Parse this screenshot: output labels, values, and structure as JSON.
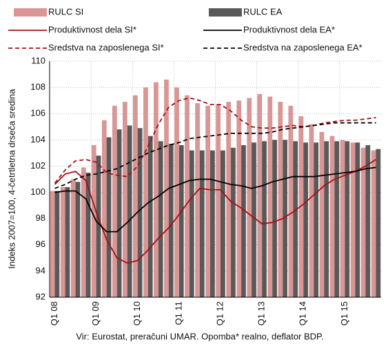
{
  "chart_data": {
    "type": "bar",
    "y_label": "Indeks 2007=100, 4-četrtletna drseča sredina",
    "footer": "Vir: Eurostat, preračuni UMAR. Opomba* realno, deflator BDP.",
    "categories": [
      "Q1 08",
      null,
      null,
      null,
      "Q1 09",
      null,
      null,
      null,
      "Q1 10",
      null,
      null,
      null,
      "Q1 11",
      null,
      null,
      null,
      "Q1 12",
      null,
      null,
      null,
      "Q1 13",
      null,
      null,
      null,
      "Q1 14",
      null,
      null,
      null,
      "Q1 15",
      null,
      null,
      null
    ],
    "ylim": [
      92,
      110
    ],
    "yticks": [
      92,
      94,
      96,
      98,
      100,
      102,
      104,
      106,
      108,
      110
    ],
    "grid": true,
    "series": [
      {
        "name": "RULC SI",
        "type": "bar",
        "color": "#d99694",
        "values": [
          100.1,
          100.4,
          101.0,
          101.9,
          103.6,
          105.5,
          106.6,
          106.9,
          107.4,
          108.0,
          108.4,
          108.6,
          108.0,
          107.4,
          106.8,
          106.6,
          106.7,
          106.9,
          107.0,
          107.2,
          107.5,
          107.3,
          106.9,
          106.6,
          105.8,
          105.2,
          104.6,
          104.3,
          104.0,
          103.8,
          103.4,
          103.2
        ]
      },
      {
        "name": "RULC EA",
        "type": "bar",
        "color": "#595959",
        "values": [
          100.1,
          100.4,
          100.8,
          101.5,
          102.8,
          104.2,
          104.8,
          105.1,
          104.9,
          104.3,
          103.9,
          103.7,
          103.6,
          103.2,
          103.2,
          103.2,
          103.2,
          103.4,
          103.6,
          103.8,
          103.9,
          104.0,
          104.0,
          103.9,
          103.8,
          103.8,
          103.9,
          103.9,
          103.9,
          103.8,
          103.6,
          103.3
        ]
      },
      {
        "name": "Produktivnost dela SI*",
        "type": "line",
        "dashed": false,
        "color": "#a50f15",
        "values": [
          100.6,
          101.4,
          101.6,
          100.9,
          98.5,
          96.4,
          95.0,
          94.6,
          94.8,
          95.6,
          96.5,
          97.3,
          98.3,
          99.4,
          100.3,
          100.2,
          100.2,
          99.3,
          98.8,
          98.2,
          97.6,
          97.7,
          98.0,
          98.5,
          99.1,
          99.8,
          100.5,
          101.0,
          101.3,
          101.6,
          102.0,
          102.5
        ]
      },
      {
        "name": "Produktivnost dela EA*",
        "type": "line",
        "dashed": false,
        "color": "#000000",
        "values": [
          100.0,
          100.1,
          100.1,
          99.5,
          97.8,
          97.0,
          97.0,
          97.7,
          98.5,
          99.2,
          99.7,
          100.3,
          100.6,
          100.9,
          101.0,
          101.0,
          100.8,
          100.6,
          100.5,
          100.3,
          100.5,
          100.8,
          101.0,
          101.2,
          101.2,
          101.2,
          101.3,
          101.4,
          101.5,
          101.6,
          101.8,
          101.9
        ]
      },
      {
        "name": "Sredstva na zaposlenega SI*",
        "type": "line",
        "dashed": true,
        "color": "#a50f15",
        "values": [
          100.7,
          101.7,
          102.4,
          102.5,
          102.3,
          101.5,
          101.3,
          101.2,
          102.0,
          103.5,
          105.2,
          106.5,
          107.0,
          107.2,
          107.0,
          106.7,
          106.7,
          106.2,
          105.5,
          105.0,
          104.9,
          104.9,
          105.0,
          105.1,
          105.0,
          105.1,
          105.3,
          105.4,
          105.5,
          105.5,
          105.6,
          105.7
        ]
      },
      {
        "name": "Sredstva na zaposlenega EA*",
        "type": "line",
        "dashed": true,
        "color": "#000000",
        "values": [
          100.3,
          100.6,
          101.0,
          101.3,
          101.4,
          101.6,
          101.8,
          102.2,
          102.6,
          103.0,
          103.3,
          103.6,
          103.8,
          104.1,
          104.2,
          104.3,
          104.4,
          104.5,
          104.5,
          104.5,
          104.5,
          104.6,
          104.8,
          104.9,
          105.0,
          105.1,
          105.2,
          105.3,
          105.3,
          105.3,
          105.3,
          105.3
        ]
      }
    ]
  }
}
